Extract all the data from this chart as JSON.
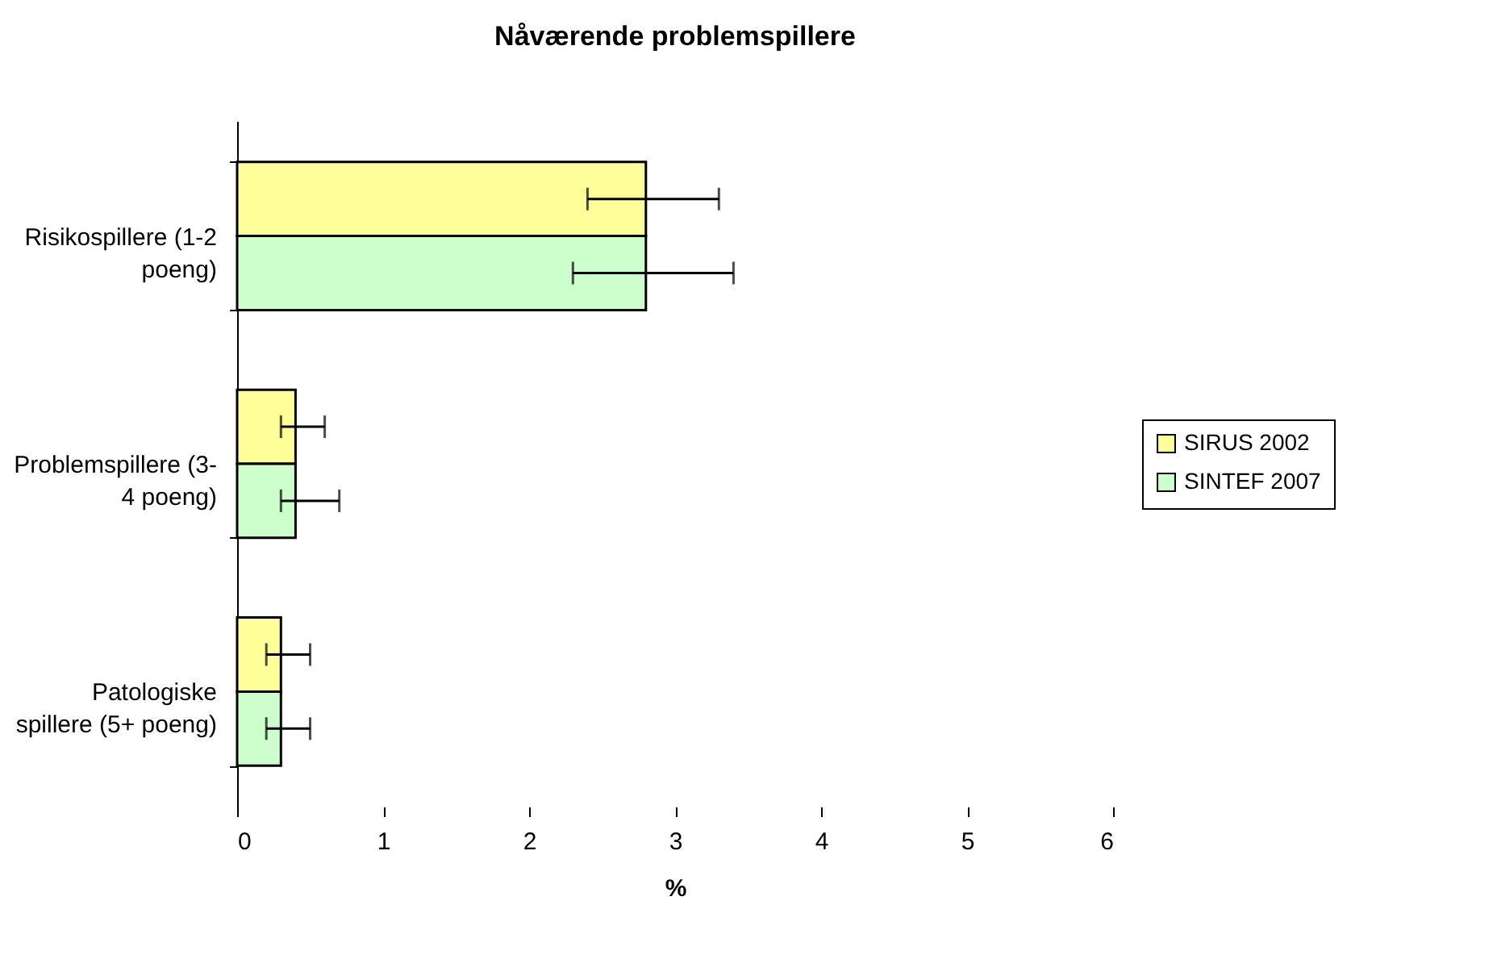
{
  "chart_data": {
    "type": "bar",
    "orientation": "horizontal",
    "title": "Nåværende problemspillere",
    "xlabel": "%",
    "categories": [
      "Risikospillere (1-2 poeng)",
      "Problemspillere (3-4 poeng)",
      "Patologiske spillere (5+ poeng)"
    ],
    "series": [
      {
        "name": "SIRUS 2002",
        "color": "#ffff99",
        "values": [
          2.8,
          0.4,
          0.3
        ],
        "errors": [
          [
            2.4,
            3.3
          ],
          [
            0.3,
            0.6
          ],
          [
            0.2,
            0.5
          ]
        ]
      },
      {
        "name": "SINTEF 2007",
        "color": "#ccffcc",
        "values": [
          2.8,
          0.4,
          0.3
        ],
        "errors": [
          [
            2.3,
            3.4
          ],
          [
            0.3,
            0.7
          ],
          [
            0.2,
            0.5
          ]
        ]
      }
    ],
    "xlim": [
      0,
      6
    ],
    "xticks": [
      0,
      1,
      2,
      3,
      4,
      5,
      6
    ],
    "grid": false,
    "legend": "right"
  }
}
